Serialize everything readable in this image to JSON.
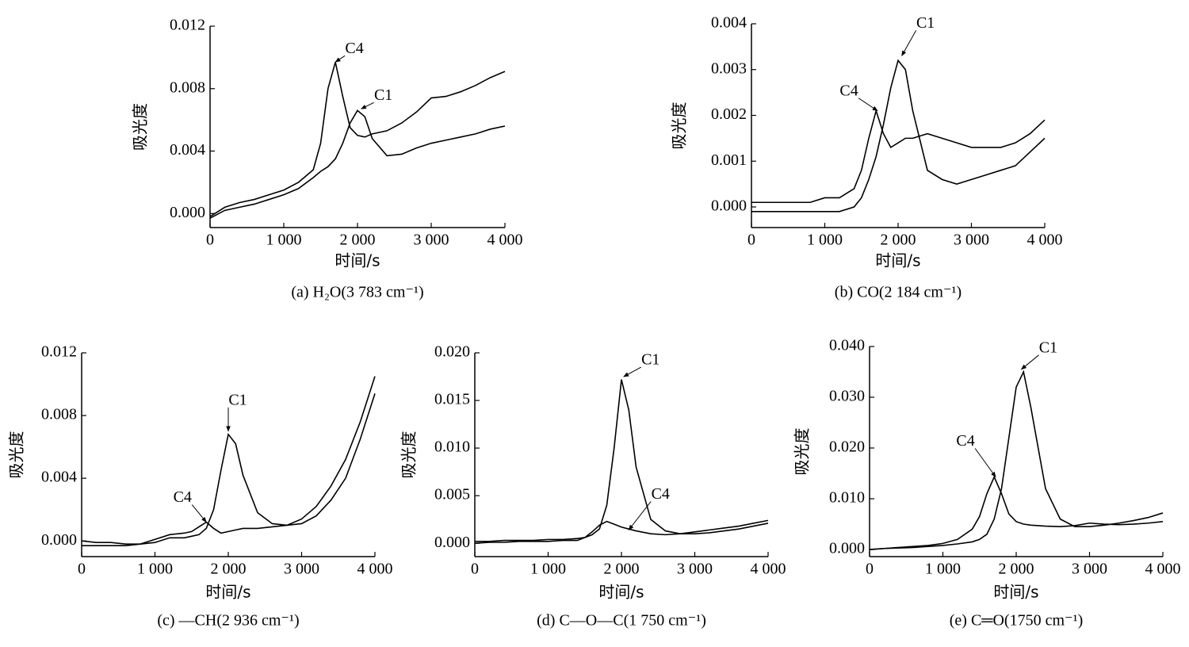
{
  "chart_data": [
    {
      "type": "line",
      "caption": "(a) H₂O(3 783 cm⁻¹)",
      "x_label": "时间/s",
      "y_label": "吸光度",
      "x": [
        0,
        200,
        400,
        600,
        800,
        1000,
        1200,
        1400,
        1500,
        1600,
        1700,
        1800,
        1900,
        2000,
        2100,
        2200,
        2400,
        2600,
        2800,
        3000,
        3200,
        3400,
        3600,
        3800,
        4000
      ],
      "series": [
        {
          "name": "C4",
          "color": "#000000",
          "values": [
            -0.0002,
            0.0004,
            0.0007,
            0.0009,
            0.0012,
            0.0015,
            0.002,
            0.0028,
            0.0045,
            0.008,
            0.0097,
            0.0075,
            0.0055,
            0.005,
            0.0049,
            0.0051,
            0.0053,
            0.0058,
            0.0065,
            0.0074,
            0.0075,
            0.0078,
            0.0082,
            0.0087,
            0.0091
          ]
        },
        {
          "name": "C1",
          "color": "#000000",
          "values": [
            -0.0003,
            0.0002,
            0.0004,
            0.0006,
            0.0009,
            0.0012,
            0.0016,
            0.0023,
            0.0027,
            0.003,
            0.0035,
            0.0045,
            0.0058,
            0.0066,
            0.0062,
            0.0048,
            0.0037,
            0.0038,
            0.0042,
            0.0045,
            0.0047,
            0.0049,
            0.0051,
            0.0054,
            0.0056
          ]
        }
      ],
      "annotations": [
        {
          "text": "C4",
          "x": 1700,
          "y": 0.0097
        },
        {
          "text": "C1",
          "x": 2050,
          "y": 0.0067
        }
      ],
      "xlim": [
        0,
        4000
      ],
      "xticks": [
        0,
        {
          "value": 1000,
          "label": "1 000"
        },
        {
          "value": 2000,
          "label": "2 000"
        },
        {
          "value": 3000,
          "label": "3 000"
        },
        {
          "value": 4000,
          "label": "4 000"
        }
      ],
      "ylim": [
        -0.0009,
        0.012
      ],
      "yticks": [
        {
          "value": 0,
          "label": "0.000"
        },
        0.004,
        0.008,
        0.012
      ]
    },
    {
      "type": "line",
      "caption": "(b) CO(2 184 cm⁻¹)",
      "x_label": "时间/s",
      "y_label": "吸光度",
      "x": [
        0,
        200,
        400,
        600,
        800,
        1000,
        1200,
        1400,
        1500,
        1600,
        1700,
        1800,
        1900,
        2000,
        2100,
        2200,
        2400,
        2600,
        2800,
        3000,
        3200,
        3400,
        3600,
        3800,
        4000
      ],
      "series": [
        {
          "name": "C1",
          "color": "#000000",
          "values": [
            -0.0001,
            -0.0001,
            -0.0001,
            -0.0001,
            -0.0001,
            -0.0001,
            -0.0001,
            0.0,
            0.0002,
            0.0006,
            0.0011,
            0.0018,
            0.0026,
            0.0032,
            0.003,
            0.0021,
            0.0008,
            0.0006,
            0.0005,
            0.0006,
            0.0007,
            0.0008,
            0.0009,
            0.0012,
            0.0015
          ]
        },
        {
          "name": "C4",
          "color": "#000000",
          "values": [
            0.0001,
            0.0001,
            0.0001,
            0.0001,
            0.0001,
            0.0002,
            0.0002,
            0.0004,
            0.0008,
            0.0015,
            0.0021,
            0.0016,
            0.0013,
            0.0014,
            0.0015,
            0.0015,
            0.0016,
            0.0015,
            0.0014,
            0.0013,
            0.0013,
            0.0013,
            0.0014,
            0.0016,
            0.0019
          ]
        }
      ],
      "annotations": [
        {
          "text": "C1",
          "x": 2050,
          "y": 0.0033
        },
        {
          "text": "C4",
          "x": 1720,
          "y": 0.0021
        }
      ],
      "xlim": [
        0,
        4000
      ],
      "xticks": [
        0,
        {
          "value": 1000,
          "label": "1 000"
        },
        {
          "value": 2000,
          "label": "2 000"
        },
        {
          "value": 3000,
          "label": "3 000"
        },
        {
          "value": 4000,
          "label": "4 000"
        }
      ],
      "ylim": [
        -0.00045,
        0.004
      ],
      "yticks": [
        {
          "value": 0,
          "label": "0.000"
        },
        0.001,
        0.002,
        0.003,
        0.004
      ]
    },
    {
      "type": "line",
      "caption": "(c) —CH(2 936 cm⁻¹)",
      "x_label": "时间/s",
      "y_label": "吸光度",
      "x": [
        0,
        200,
        400,
        600,
        800,
        1000,
        1200,
        1400,
        1500,
        1600,
        1700,
        1800,
        1900,
        2000,
        2100,
        2200,
        2400,
        2600,
        2800,
        3000,
        3200,
        3400,
        3600,
        3800,
        4000
      ],
      "series": [
        {
          "name": "C1",
          "color": "#000000",
          "values": [
            0.0,
            -0.0001,
            -0.0001,
            -0.0002,
            -0.0002,
            -0.0001,
            0.0002,
            0.0002,
            0.0003,
            0.0004,
            0.0008,
            0.002,
            0.0045,
            0.0068,
            0.0062,
            0.0042,
            0.0018,
            0.0011,
            0.001,
            0.0011,
            0.0016,
            0.0026,
            0.004,
            0.0065,
            0.0094
          ]
        },
        {
          "name": "C4",
          "color": "#000000",
          "values": [
            -0.0003,
            -0.0003,
            -0.0003,
            -0.0003,
            -0.0002,
            0.0001,
            0.0004,
            0.0005,
            0.0006,
            0.0009,
            0.0012,
            0.0008,
            0.0005,
            0.0006,
            0.0007,
            0.0008,
            0.0008,
            0.0009,
            0.001,
            0.0014,
            0.0022,
            0.0035,
            0.0052,
            0.0076,
            0.0105
          ]
        }
      ],
      "annotations": [
        {
          "text": "C1",
          "x": 2000,
          "y": 0.007
        },
        {
          "text": "C4",
          "x": 1700,
          "y": 0.0012
        }
      ],
      "xlim": [
        0,
        4000
      ],
      "xticks": [
        0,
        {
          "value": 1000,
          "label": "1 000"
        },
        {
          "value": 2000,
          "label": "2 000"
        },
        {
          "value": 3000,
          "label": "3 000"
        },
        {
          "value": 4000,
          "label": "4 000"
        }
      ],
      "ylim": [
        -0.001,
        0.012
      ],
      "yticks": [
        {
          "value": 0,
          "label": "0.000"
        },
        0.004,
        0.008,
        0.012
      ]
    },
    {
      "type": "line",
      "caption": "(d) C—O—C(1 750 cm⁻¹)",
      "x_label": "时间/s",
      "y_label": "吸光度",
      "x": [
        0,
        200,
        400,
        600,
        800,
        1000,
        1200,
        1400,
        1500,
        1600,
        1700,
        1800,
        1900,
        2000,
        2100,
        2200,
        2400,
        2600,
        2800,
        3000,
        3200,
        3400,
        3600,
        3800,
        4000
      ],
      "series": [
        {
          "name": "C1",
          "color": "#000000",
          "values": [
            0.0002,
            0.0002,
            0.0003,
            0.0003,
            0.0003,
            0.0004,
            0.0004,
            0.0005,
            0.0006,
            0.0009,
            0.0015,
            0.004,
            0.01,
            0.0172,
            0.014,
            0.008,
            0.0025,
            0.0013,
            0.001,
            0.001,
            0.0011,
            0.0013,
            0.0015,
            0.0018,
            0.0021
          ]
        },
        {
          "name": "C4",
          "color": "#000000",
          "values": [
            0.0,
            0.0001,
            0.0001,
            0.0002,
            0.0002,
            0.0002,
            0.0003,
            0.0003,
            0.0006,
            0.0012,
            0.0019,
            0.0023,
            0.002,
            0.0017,
            0.0015,
            0.0013,
            0.001,
            0.0009,
            0.001,
            0.0012,
            0.0014,
            0.0016,
            0.0018,
            0.0021,
            0.0024
          ]
        }
      ],
      "annotations": [
        {
          "text": "C1",
          "x": 2030,
          "y": 0.0175
        },
        {
          "text": "C4",
          "x": 2100,
          "y": 0.0014
        }
      ],
      "xlim": [
        0,
        4000
      ],
      "xticks": [
        0,
        {
          "value": 1000,
          "label": "1 000"
        },
        {
          "value": 2000,
          "label": "2 000"
        },
        {
          "value": 3000,
          "label": "3 000"
        },
        {
          "value": 4000,
          "label": "4 000"
        }
      ],
      "ylim": [
        -0.0014,
        0.02
      ],
      "yticks": [
        {
          "value": 0,
          "label": "0.000"
        },
        0.005,
        {
          "value": 0.01,
          "label": "0.010"
        },
        0.015,
        {
          "value": 0.02,
          "label": "0.020"
        }
      ]
    },
    {
      "type": "line",
      "caption": "(e) C═O(1750 cm⁻¹)",
      "x_label": "时间/s",
      "y_label": "吸光度",
      "x": [
        0,
        200,
        400,
        600,
        800,
        1000,
        1200,
        1400,
        1500,
        1600,
        1700,
        1800,
        1900,
        2000,
        2100,
        2200,
        2400,
        2600,
        2800,
        3000,
        3200,
        3400,
        3600,
        3800,
        4000
      ],
      "series": [
        {
          "name": "C1",
          "color": "#000000",
          "values": [
            0.0,
            0.0002,
            0.0003,
            0.0004,
            0.0006,
            0.0008,
            0.0011,
            0.0015,
            0.002,
            0.003,
            0.006,
            0.012,
            0.022,
            0.032,
            0.035,
            0.028,
            0.012,
            0.006,
            0.0045,
            0.0045,
            0.0048,
            0.0052,
            0.0057,
            0.0063,
            0.0072
          ]
        },
        {
          "name": "C4",
          "color": "#000000",
          "values": [
            0.0,
            0.0002,
            0.0004,
            0.0006,
            0.0008,
            0.0012,
            0.002,
            0.004,
            0.0065,
            0.011,
            0.0143,
            0.011,
            0.007,
            0.0055,
            0.005,
            0.0048,
            0.0046,
            0.0045,
            0.0047,
            0.0052,
            0.005,
            0.0049,
            0.005,
            0.0052,
            0.0055
          ]
        }
      ],
      "annotations": [
        {
          "text": "C1",
          "x": 2070,
          "y": 0.0355
        },
        {
          "text": "C4",
          "x": 1720,
          "y": 0.0143
        }
      ],
      "xlim": [
        0,
        4000
      ],
      "xticks": [
        0,
        {
          "value": 1000,
          "label": "1 000"
        },
        {
          "value": 2000,
          "label": "2 000"
        },
        {
          "value": 3000,
          "label": "3 000"
        },
        {
          "value": 4000,
          "label": "4 000"
        }
      ],
      "ylim": [
        -0.0014,
        0.04
      ],
      "yticks": [
        {
          "value": 0,
          "label": "0.000"
        },
        {
          "value": 0.01,
          "label": "0.010"
        },
        {
          "value": 0.02,
          "label": "0.020"
        },
        {
          "value": 0.03,
          "label": "0.030"
        },
        {
          "value": 0.04,
          "label": "0.040"
        }
      ]
    }
  ]
}
